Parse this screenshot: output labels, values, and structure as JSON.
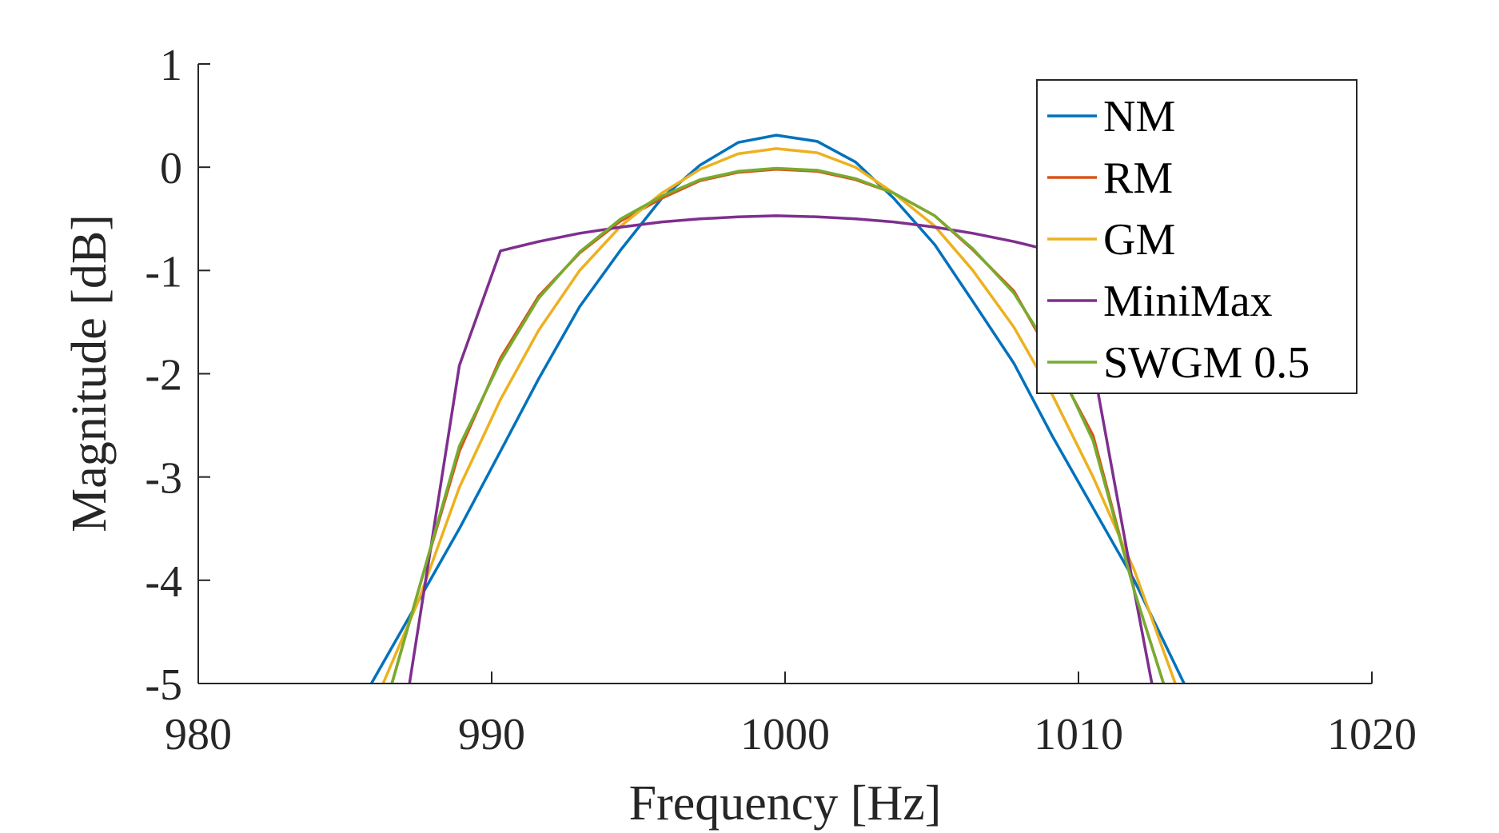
{
  "chart_data": {
    "type": "line",
    "xlabel": "Frequency [Hz]",
    "ylabel": "Magnitude [dB]",
    "xlim": [
      980,
      1020
    ],
    "ylim": [
      -5,
      1
    ],
    "xticks": [
      980,
      990,
      1000,
      1010,
      1020
    ],
    "yticks": [
      1,
      0,
      -1,
      -2,
      -3,
      -4,
      -5
    ],
    "ytick_labels": [
      "1",
      "0",
      "-1",
      "-2",
      "-3",
      "-4",
      "-5"
    ],
    "grid": false,
    "legend_position": "top-right",
    "series": [
      {
        "name": "NM",
        "color": "#0072BD",
        "x": [
          985.9,
          987.5,
          988.9,
          990.3,
          991.6,
          993.0,
          994.4,
          995.8,
          997.1,
          998.4,
          999.7,
          1001.1,
          1002.4,
          1003.7,
          1005.1,
          1006.4,
          1007.8,
          1009.1,
          1010.5,
          1011.9,
          1013.6
        ],
        "y": [
          -5.0,
          -4.2,
          -3.5,
          -2.75,
          -2.05,
          -1.35,
          -0.8,
          -0.3,
          0.02,
          0.24,
          0.31,
          0.25,
          0.05,
          -0.3,
          -0.75,
          -1.3,
          -1.9,
          -2.6,
          -3.3,
          -4.0,
          -5.0
        ]
      },
      {
        "name": "RM",
        "color": "#D95319",
        "x": [
          986.6,
          987.5,
          988.9,
          990.3,
          991.6,
          993.0,
          994.4,
          995.8,
          997.1,
          998.4,
          999.7,
          1001.1,
          1002.4,
          1003.7,
          1005.1,
          1006.4,
          1007.8,
          1009.1,
          1010.5,
          1011.9,
          1012.9
        ],
        "y": [
          -5.0,
          -4.1,
          -2.75,
          -1.85,
          -1.25,
          -0.83,
          -0.52,
          -0.3,
          -0.13,
          -0.05,
          -0.02,
          -0.04,
          -0.12,
          -0.25,
          -0.47,
          -0.8,
          -1.2,
          -1.85,
          -2.6,
          -4.1,
          -5.0
        ]
      },
      {
        "name": "GM",
        "color": "#EDB120",
        "x": [
          986.3,
          987.5,
          988.9,
          990.3,
          991.6,
          993.0,
          994.4,
          995.8,
          997.1,
          998.4,
          999.7,
          1001.1,
          1002.4,
          1003.7,
          1005.1,
          1006.4,
          1007.8,
          1009.1,
          1010.5,
          1011.9,
          1013.3
        ],
        "y": [
          -5.0,
          -4.2,
          -3.1,
          -2.25,
          -1.58,
          -1.0,
          -0.57,
          -0.25,
          -0.02,
          0.13,
          0.18,
          0.14,
          0.0,
          -0.25,
          -0.57,
          -1.0,
          -1.55,
          -2.2,
          -3.0,
          -3.9,
          -5.0
        ]
      },
      {
        "name": "MiniMax",
        "color": "#7E2F8E",
        "x": [
          987.2,
          988.9,
          990.3,
          991.6,
          993.0,
          994.4,
          995.8,
          997.1,
          998.4,
          999.7,
          1001.1,
          1002.4,
          1003.7,
          1005.1,
          1006.4,
          1007.8,
          1009.1,
          1010.5,
          1011.9,
          1012.5
        ],
        "y": [
          -5.0,
          -1.92,
          -0.81,
          -0.72,
          -0.64,
          -0.58,
          -0.53,
          -0.5,
          -0.48,
          -0.47,
          -0.48,
          -0.5,
          -0.53,
          -0.58,
          -0.64,
          -0.72,
          -0.81,
          -1.92,
          -4.1,
          -5.0
        ]
      },
      {
        "name": "SWGM 0.5",
        "color": "#77AC30",
        "x": [
          986.6,
          987.5,
          988.9,
          990.3,
          991.6,
          993.0,
          994.4,
          995.8,
          997.1,
          998.4,
          999.7,
          1001.1,
          1002.4,
          1003.7,
          1005.1,
          1006.4,
          1007.8,
          1009.1,
          1010.5,
          1011.9,
          1012.9
        ],
        "y": [
          -5.0,
          -4.1,
          -2.7,
          -1.88,
          -1.27,
          -0.82,
          -0.5,
          -0.28,
          -0.12,
          -0.04,
          -0.01,
          -0.03,
          -0.11,
          -0.25,
          -0.47,
          -0.79,
          -1.22,
          -1.8,
          -2.65,
          -4.1,
          -5.0
        ]
      }
    ]
  }
}
